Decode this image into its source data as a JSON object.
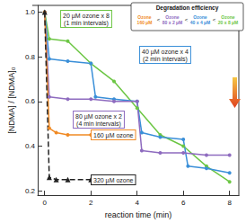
{
  "chart_data": {
    "type": "line",
    "x_label": "reaction time (min)",
    "y_label": "[NDMA] / [NDMA]₀",
    "xlim": [
      -0.3,
      8.4
    ],
    "xticks": [
      0,
      2,
      4,
      6,
      8
    ],
    "ylim": [
      0.18,
      1.03
    ],
    "yticks": [
      0.2,
      0.4,
      0.6,
      0.8,
      {
        "value": 1,
        "label": "1.0"
      }
    ],
    "grid": false,
    "series": [
      {
        "name": "20 µM ozone x 8",
        "color": "#6cc644",
        "marker": "circle",
        "line_style": "solid",
        "x": [
          0,
          0.2,
          1,
          2,
          3,
          4,
          5,
          6,
          7,
          8
        ],
        "values": [
          1,
          0.88,
          0.87,
          0.77,
          0.69,
          0.57,
          0.45,
          0.4,
          0.31,
          0.24
        ]
      },
      {
        "name": "40 µM ozone x 4",
        "color": "#3a8fd8",
        "marker": "circle",
        "line_style": "solid",
        "x": [
          0,
          0.2,
          1,
          2,
          2.2,
          3,
          4,
          4.2,
          5,
          6,
          6.2,
          7,
          8
        ],
        "values": [
          1,
          0.79,
          0.78,
          0.77,
          0.62,
          0.61,
          0.6,
          0.46,
          0.44,
          0.43,
          0.31,
          0.3,
          0.28
        ]
      },
      {
        "name": "80 µM ozone x 2",
        "color": "#8e6bbf",
        "marker": "circle",
        "line_style": "solid",
        "x": [
          0,
          0.2,
          1,
          2,
          3,
          4,
          4.2,
          5,
          6,
          7,
          8
        ],
        "values": [
          1,
          0.62,
          0.61,
          0.61,
          0.6,
          0.6,
          0.38,
          0.37,
          0.37,
          0.36,
          0.36
        ]
      },
      {
        "name": "160 µM ozone",
        "color": "#f08a24",
        "marker": "circle",
        "line_style": "solid",
        "x": [
          0,
          0.2,
          0.5,
          1,
          2
        ],
        "values": [
          1,
          0.48,
          0.46,
          0.45,
          0.45
        ]
      },
      {
        "name": "320 µM ozone",
        "color": "#222222",
        "marker": "triangle",
        "line_style": "dashed",
        "x": [
          0,
          0.2,
          0.5,
          1,
          2
        ],
        "values": [
          1,
          0.26,
          0.25,
          0.25,
          0.25
        ]
      }
    ],
    "annotations": [
      {
        "text": "20 µM ozone x 8\n(1 min intervals)",
        "color": "#6cc644"
      },
      {
        "text": "40 µM ozone x 4\n(2 min intervals)",
        "color": "#3a8fd8"
      },
      {
        "text": "80 µM ozone x 2\n(4 min intervals)",
        "color": "#8e6bbf"
      },
      {
        "text": "160 µM ozone",
        "color": "#f08a24"
      },
      {
        "text": "320 µM ozone",
        "color": "#222222"
      }
    ],
    "efficiency": {
      "title": "Degradation efficiency",
      "separator": "<",
      "items": [
        {
          "text": "Ozone\n160 µM",
          "color": "#f08a24"
        },
        {
          "text": "Ozone\n80 x 2 µM",
          "color": "#8e6bbf"
        },
        {
          "text": "Ozone\n40 x 4 µM",
          "color": "#3a8fd8"
        },
        {
          "text": "Ozone\n20 x 8 µM",
          "color": "#6cc644"
        }
      ]
    }
  }
}
